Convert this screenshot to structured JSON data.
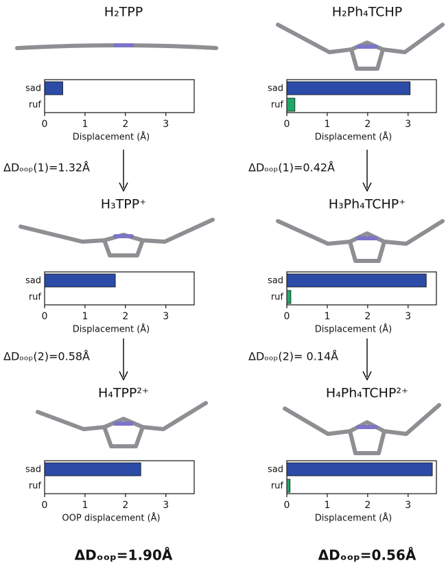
{
  "chart_data": [
    {
      "type": "bar",
      "orientation": "horizontal",
      "title": "H₂TPP",
      "categories": [
        "sad",
        "ruf"
      ],
      "values": [
        0.45,
        0
      ],
      "colors": [
        "#2b4ba6",
        "#1fa865"
      ],
      "xlim": [
        0,
        3.7
      ],
      "xticks": [
        0,
        1,
        2,
        3
      ],
      "xlabel": "Displacement (Å)"
    },
    {
      "type": "bar",
      "orientation": "horizontal",
      "title": "H₂Ph₄TCHP",
      "categories": [
        "sad",
        "ruf"
      ],
      "values": [
        3.05,
        0.2
      ],
      "colors": [
        "#2b4ba6",
        "#1fa865"
      ],
      "xlim": [
        0,
        3.7
      ],
      "xticks": [
        0,
        1,
        2,
        3
      ],
      "xlabel": "Displacement (Å)"
    },
    {
      "type": "bar",
      "orientation": "horizontal",
      "arrow_label": "ΔDₒₒₚ(1)=1.32Å",
      "title": "H₃TPP⁺",
      "categories": [
        "sad",
        "ruf"
      ],
      "values": [
        1.75,
        0
      ],
      "colors": [
        "#2b4ba6",
        "#1fa865"
      ],
      "xlim": [
        0,
        3.7
      ],
      "xticks": [
        0,
        1,
        2,
        3
      ],
      "xlabel": "Displacement (Å)"
    },
    {
      "type": "bar",
      "orientation": "horizontal",
      "arrow_label": "ΔDₒₒₚ(1)=0.42Å",
      "title": "H₃Ph₄TCHP⁺",
      "categories": [
        "sad",
        "ruf"
      ],
      "values": [
        3.45,
        0.1
      ],
      "colors": [
        "#2b4ba6",
        "#1fa865"
      ],
      "xlim": [
        0,
        3.7
      ],
      "xticks": [
        0,
        1,
        2,
        3
      ],
      "xlabel": "Displacement (Å)"
    },
    {
      "type": "bar",
      "orientation": "horizontal",
      "arrow_label": "ΔDₒₒₚ(2)=0.58Å",
      "title": "H₄TPP²⁺",
      "categories": [
        "sad",
        "ruf"
      ],
      "values": [
        2.38,
        0
      ],
      "colors": [
        "#2b4ba6",
        "#1fa865"
      ],
      "xlim": [
        0,
        3.7
      ],
      "xticks": [
        0,
        1,
        2,
        3
      ],
      "xlabel": "OOP displacement (Å)",
      "summary": "ΔDₒₒₚ=1.90Å"
    },
    {
      "type": "bar",
      "orientation": "horizontal",
      "arrow_label": "ΔDₒₒₚ(2)= 0.14Å",
      "title": "H₄Ph₄TCHP²⁺",
      "categories": [
        "sad",
        "ruf"
      ],
      "values": [
        3.6,
        0.08
      ],
      "colors": [
        "#2b4ba6",
        "#1fa865"
      ],
      "xlim": [
        0,
        3.7
      ],
      "xticks": [
        0,
        1,
        2,
        3
      ],
      "xlabel": "Displacement (Å)",
      "summary": "ΔDₒₒₚ=0.56Å"
    }
  ]
}
